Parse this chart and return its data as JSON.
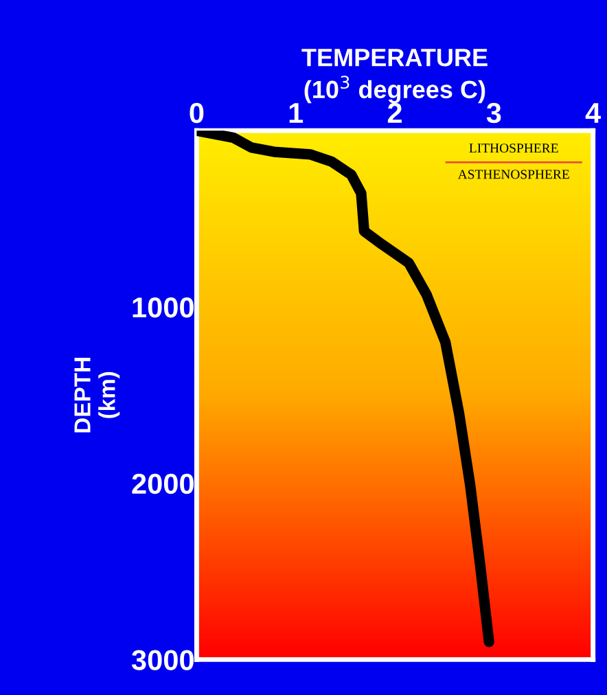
{
  "chart_data": {
    "type": "line",
    "xlabel": "TEMPERATURE\n(10$^{3}$ degrees C)",
    "ylabel": "DEPTH\n(km)",
    "series": [
      {
        "color": "#000000",
        "x": [
          0,
          0.37,
          0.55,
          0.78,
          1.15,
          1.36,
          1.56,
          1.66,
          1.69,
          1.87,
          2.14,
          2.32,
          2.51,
          2.65,
          2.76,
          2.86,
          2.95
        ],
        "values": [
          0,
          40,
          95,
          120,
          135,
          175,
          250,
          355,
          570,
          645,
          750,
          930,
          1200,
          1610,
          2010,
          2460,
          2900
        ]
      }
    ],
    "xlim": [
      0,
      4
    ],
    "xticks": [
      0,
      1,
      2,
      3,
      4
    ],
    "ylim": [
      3000,
      0
    ],
    "yticks": [
      1000,
      2000,
      3000
    ],
    "ref_lines": [
      {
        "axis": "y",
        "value": 180,
        "label": "LITHOSPHERE",
        "color": "#e8503a"
      }
    ],
    "annotations": [
      "ASTHENOSPHERE"
    ],
    "grid": false,
    "legend": false,
    "marker": "none",
    "line_style": "solid"
  }
}
